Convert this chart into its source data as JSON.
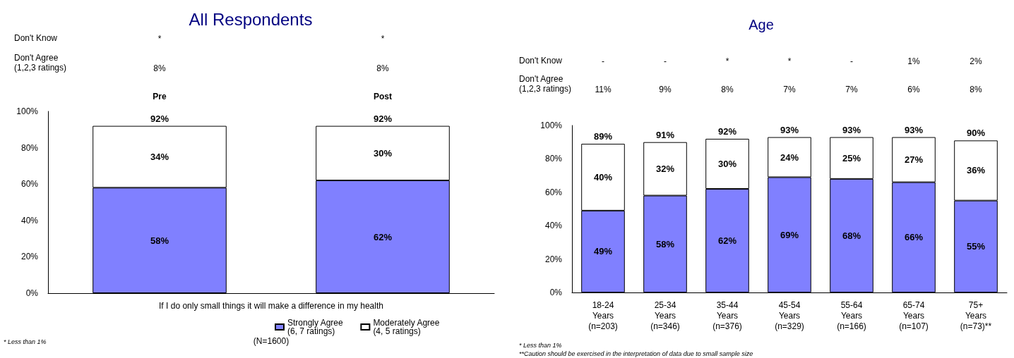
{
  "chart_data": [
    {
      "type": "bar",
      "title": "All Respondents",
      "xlabel": "If I do only small things it will make a difference in my health",
      "categories": [
        "Pre",
        "Post"
      ],
      "stacked": true,
      "legend": "bottom",
      "series": [
        {
          "name": "Strongly Agree\n(6, 7 ratings)",
          "color": "#8080ff",
          "values": [
            58,
            62
          ],
          "value_labels": [
            "58%",
            "62%"
          ]
        },
        {
          "name": "Moderately Agree\n(4, 5 ratings)",
          "color": "#ffffff",
          "values": [
            34,
            30
          ],
          "value_labels": [
            "34%",
            "30%"
          ]
        }
      ],
      "totals": [
        "92%",
        "92%"
      ],
      "ylim": [
        0,
        100
      ],
      "yticks": [
        {
          "value": 0,
          "label": "0%"
        },
        {
          "value": 20,
          "label": "20%"
        },
        {
          "value": 40,
          "label": "40%"
        },
        {
          "value": 60,
          "label": "60%"
        },
        {
          "value": 80,
          "label": "80%"
        },
        {
          "value": 100,
          "label": "100%"
        }
      ],
      "annotations": [
        "Don't Know",
        "*",
        "*",
        "Don't Agree\n(1,2,3 ratings)",
        "8%",
        "8%",
        "(N=1600)",
        "* Less than 1%"
      ]
    },
    {
      "type": "bar",
      "title": "Age",
      "categories": [
        "18-24\nYears\n(n=203)",
        "25-34\nYears\n(n=346)",
        "35-44\nYears\n(n=376)",
        "45-54\nYears\n(n=329)",
        "55-64\nYears\n(n=166)",
        "65-74\nYears\n(n=107)",
        "75+\nYears\n(n=73)**"
      ],
      "stacked": true,
      "series": [
        {
          "color": "#8080ff",
          "values": [
            49,
            58,
            62,
            69,
            68,
            66,
            55
          ],
          "value_labels": [
            "49%",
            "58%",
            "62%",
            "69%",
            "68%",
            "66%",
            "55%"
          ]
        },
        {
          "color": "#ffffff",
          "values": [
            40,
            32,
            30,
            24,
            25,
            27,
            36
          ],
          "value_labels": [
            "40%",
            "32%",
            "30%",
            "24%",
            "25%",
            "27%",
            "36%"
          ]
        }
      ],
      "totals": [
        "89%",
        "91%",
        "92%",
        "93%",
        "93%",
        "93%",
        "90%"
      ],
      "ylim": [
        0,
        100
      ],
      "yticks": [
        {
          "value": 0,
          "label": "0%"
        },
        {
          "value": 20,
          "label": "20%"
        },
        {
          "value": 40,
          "label": "40%"
        },
        {
          "value": 60,
          "label": "60%"
        },
        {
          "value": 80,
          "label": "80%"
        },
        {
          "value": 100,
          "label": "100%"
        }
      ],
      "annotations": [
        "Don't Know",
        "-",
        "-",
        "*",
        "*",
        "-",
        "1%",
        "2%",
        "Don't Agree\n(1,2,3 ratings)",
        "11%",
        "9%",
        "8%",
        "7%",
        "7%",
        "6%",
        "8%",
        "* Less than 1%",
        "**Caution should be exercised in the interpretation of data due to small sample size"
      ]
    }
  ]
}
